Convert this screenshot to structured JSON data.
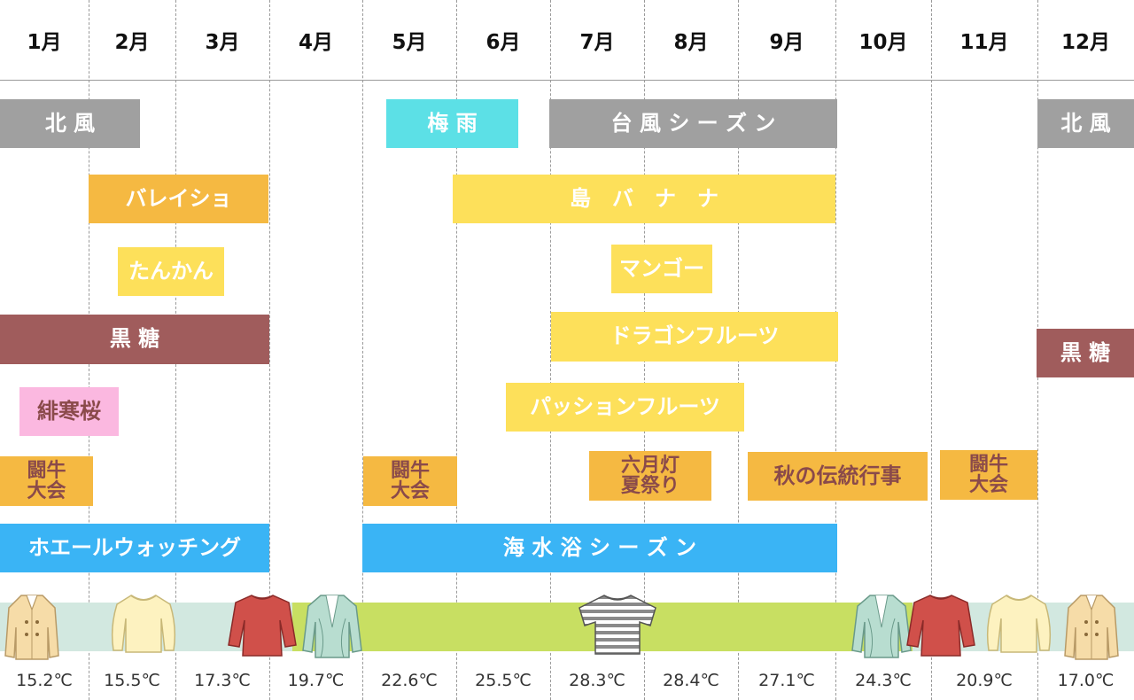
{
  "months": [
    "1月",
    "2月",
    "3月",
    "4月",
    "5月",
    "6月",
    "7月",
    "8月",
    "9月",
    "10月",
    "11月",
    "12月"
  ],
  "bars": {
    "kitakaze_1": "北 風",
    "tsuyu": "梅 雨",
    "typhoon": "台 風 シ ー ズ ン",
    "kitakaze_2": "北 風",
    "bareisho": "バレイショ",
    "shima_banana": "島　バ　ナ　ナ",
    "tankan": "たんかん",
    "mango": "マンゴー",
    "kokuto_1": "黒 糖",
    "dragon_fruit": "ドラゴンフルーツ",
    "kokuto_2": "黒 糖",
    "hikanzakura": "緋寒桜",
    "passion_fruit": "パッションフルーツ",
    "togyu_1": "闘牛\n大会",
    "togyu_2": "闘牛\n大会",
    "rokugatsudo": "六月灯\n夏祭り",
    "aki_dento": "秋の伝統行事",
    "togyu_3": "闘牛\n大会",
    "whale": "ホエールウォッチング",
    "kaisuiyoku": "海 水 浴 シ ー ズ ン"
  },
  "temperatures": [
    "15.2℃",
    "15.5℃",
    "17.3℃",
    "19.7℃",
    "22.6℃",
    "25.5℃",
    "28.3℃",
    "28.4℃",
    "27.1℃",
    "24.3℃",
    "20.9℃",
    "17.0℃"
  ],
  "clothing": [
    "coat",
    "sweater",
    "long-sleeve",
    "cardigan",
    "t-shirt",
    "cardigan",
    "long-sleeve",
    "sweater",
    "coat"
  ],
  "colors": {
    "gray": "#a0a0a0",
    "cyan": "#5ce0e6",
    "orange": "#f5b942",
    "yellow": "#fde05a",
    "brown": "#a05c5c",
    "pink": "#fbb8e0",
    "blue": "#3ab4f5",
    "strip_teal": "#d2e8e0",
    "strip_green": "#c8df62"
  }
}
